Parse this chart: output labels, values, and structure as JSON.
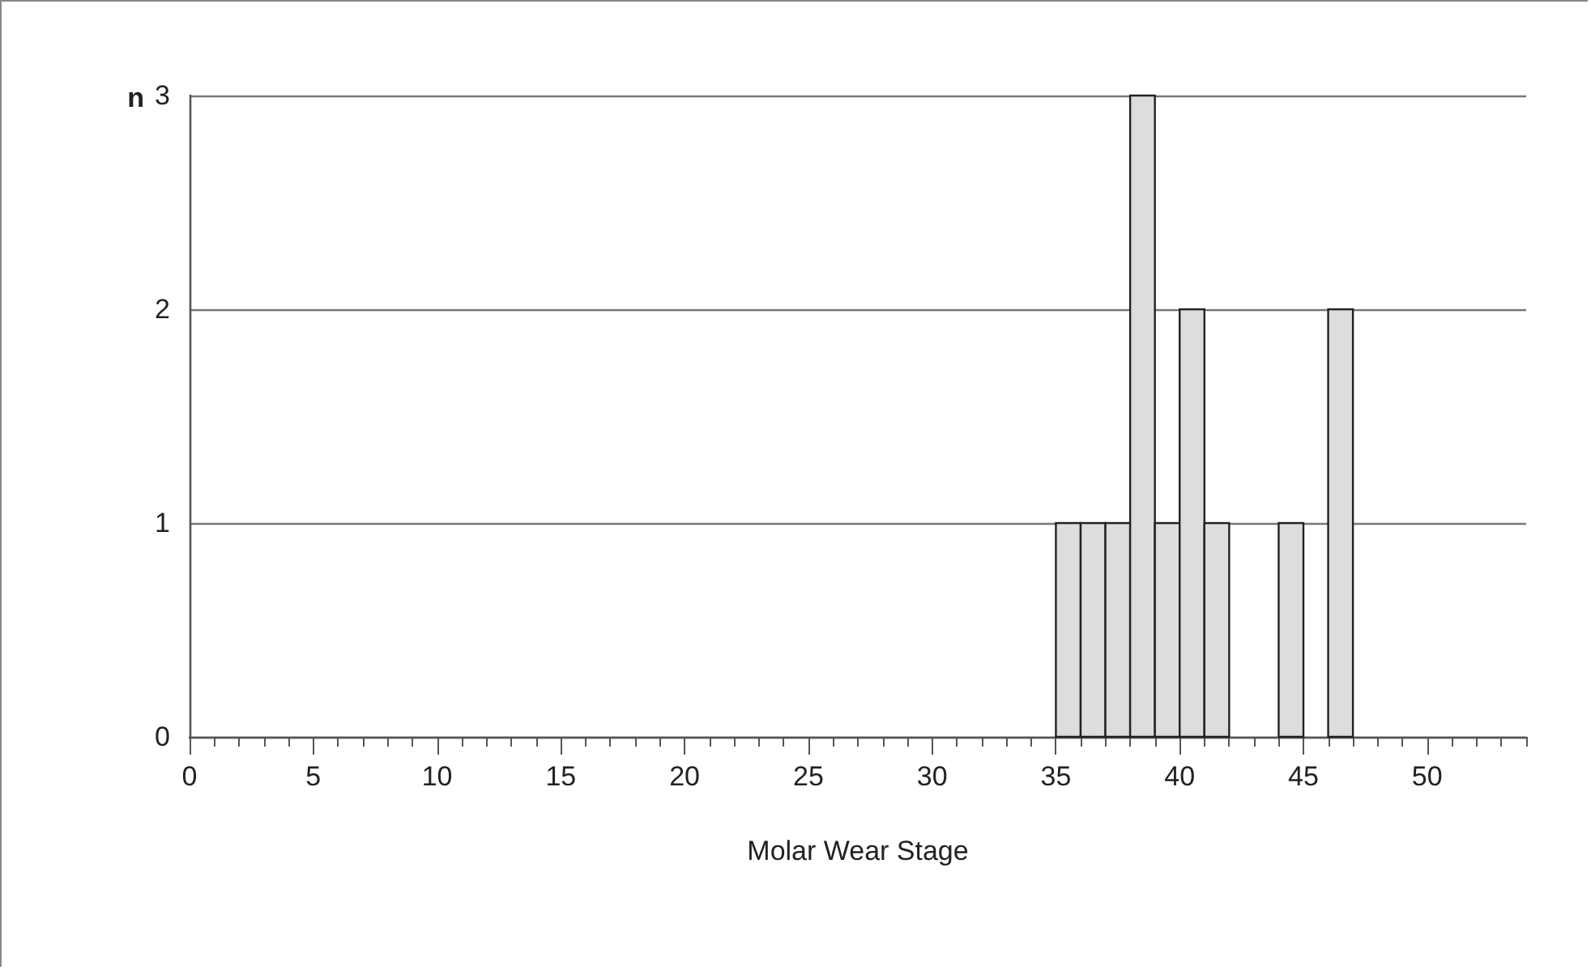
{
  "chart_data": {
    "type": "histogram",
    "xlabel": "Molar Wear Stage",
    "ylabel": "n",
    "bins": [
      35,
      36,
      37,
      38,
      39,
      40,
      41,
      42,
      43,
      44,
      45,
      46,
      47
    ],
    "values": [
      1,
      1,
      1,
      3,
      1,
      2,
      1,
      0,
      0,
      1,
      0,
      2
    ],
    "color": "#dcdddf",
    "xlim": [
      0,
      54
    ],
    "xticks": [
      0,
      {
        "value": 1,
        "label": null
      },
      {
        "value": 2,
        "label": null
      },
      {
        "value": 3,
        "label": null
      },
      {
        "value": 4,
        "label": null
      },
      5,
      {
        "value": 6,
        "label": null
      },
      {
        "value": 7,
        "label": null
      },
      {
        "value": 8,
        "label": null
      },
      {
        "value": 9,
        "label": null
      },
      10,
      {
        "value": 11,
        "label": null
      },
      {
        "value": 12,
        "label": null
      },
      {
        "value": 13,
        "label": null
      },
      {
        "value": 14,
        "label": null
      },
      15,
      {
        "value": 16,
        "label": null
      },
      {
        "value": 17,
        "label": null
      },
      {
        "value": 18,
        "label": null
      },
      {
        "value": 19,
        "label": null
      },
      20,
      {
        "value": 21,
        "label": null
      },
      {
        "value": 22,
        "label": null
      },
      {
        "value": 23,
        "label": null
      },
      {
        "value": 24,
        "label": null
      },
      25,
      {
        "value": 26,
        "label": null
      },
      {
        "value": 27,
        "label": null
      },
      {
        "value": 28,
        "label": null
      },
      {
        "value": 29,
        "label": null
      },
      30,
      {
        "value": 31,
        "label": null
      },
      {
        "value": 32,
        "label": null
      },
      {
        "value": 33,
        "label": null
      },
      {
        "value": 34,
        "label": null
      },
      35,
      {
        "value": 36,
        "label": null
      },
      {
        "value": 37,
        "label": null
      },
      {
        "value": 38,
        "label": null
      },
      {
        "value": 39,
        "label": null
      },
      40,
      {
        "value": 41,
        "label": null
      },
      {
        "value": 42,
        "label": null
      },
      {
        "value": 43,
        "label": null
      },
      {
        "value": 44,
        "label": null
      },
      45,
      {
        "value": 46,
        "label": null
      },
      {
        "value": 47,
        "label": null
      },
      {
        "value": 48,
        "label": null
      },
      {
        "value": 49,
        "label": null
      },
      50,
      {
        "value": 51,
        "label": null
      },
      {
        "value": 52,
        "label": null
      },
      {
        "value": 53,
        "label": null
      },
      {
        "value": 54,
        "label": null
      }
    ],
    "ylim": [
      0,
      3
    ],
    "yticks": [
      0,
      1,
      2,
      3
    ],
    "grid": "y"
  }
}
